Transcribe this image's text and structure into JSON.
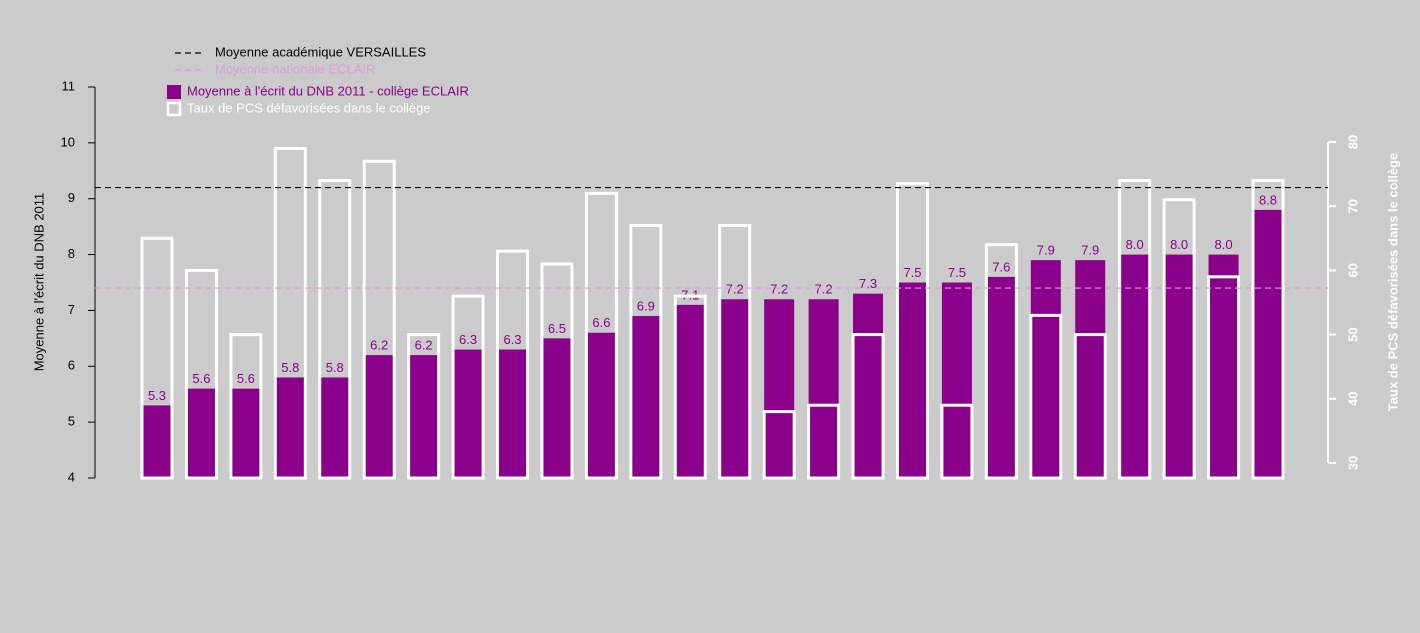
{
  "chart_data": {
    "type": "bar",
    "ylabel": "Moyenne à l'écrit du DNB 2011",
    "y2label": "Taux de PCS défavorisées dans le collège",
    "ylim": [
      4,
      11
    ],
    "yticks": [
      4,
      5,
      6,
      7,
      8,
      9,
      10,
      11
    ],
    "y2lim": [
      27.66,
      88.57
    ],
    "y2ticks": [
      30,
      40,
      50,
      60,
      70,
      80
    ],
    "series": [
      {
        "name": "Moyenne à l'écrit du DNB 2011 - collège ECLAIR",
        "color": "#8b008b",
        "style": "filled",
        "values": [
          5.3,
          5.6,
          5.6,
          5.8,
          5.8,
          6.2,
          6.2,
          6.3,
          6.3,
          6.5,
          6.6,
          6.9,
          7.1,
          7.2,
          7.2,
          7.2,
          7.3,
          7.5,
          7.5,
          7.6,
          7.9,
          7.9,
          8.0,
          8.0,
          8.0,
          8.8
        ],
        "value_labels": [
          "5.3",
          "5.6",
          "5.6",
          "5.8",
          "5.8",
          "6.2",
          "6.2",
          "6.3",
          "6.3",
          "6.5",
          "6.6",
          "6.9",
          "7.1",
          "7.2",
          "7.2",
          "7.2",
          "7.3",
          "7.5",
          "7.5",
          "7.6",
          "7.9",
          "7.9",
          "8.0",
          "8.0",
          "8.0",
          "8.8"
        ]
      },
      {
        "name": "Taux de PCS défavorisées dans le collège",
        "color": "#ffffff",
        "style": "outline",
        "axis": "y2",
        "values": [
          65,
          60,
          50,
          79,
          74,
          77,
          50,
          56,
          63,
          61,
          72,
          67,
          56,
          67,
          38,
          39,
          50,
          73.5,
          39,
          64,
          53,
          50,
          74,
          71,
          59,
          74
        ]
      }
    ],
    "reference_lines": [
      {
        "name": "Moyenne académique VERSAILLES",
        "value": 9.2,
        "color": "#000000"
      },
      {
        "name": "Moyenne nationale ECLAIR",
        "value": 7.4,
        "color": "#d7a0d7"
      }
    ]
  }
}
